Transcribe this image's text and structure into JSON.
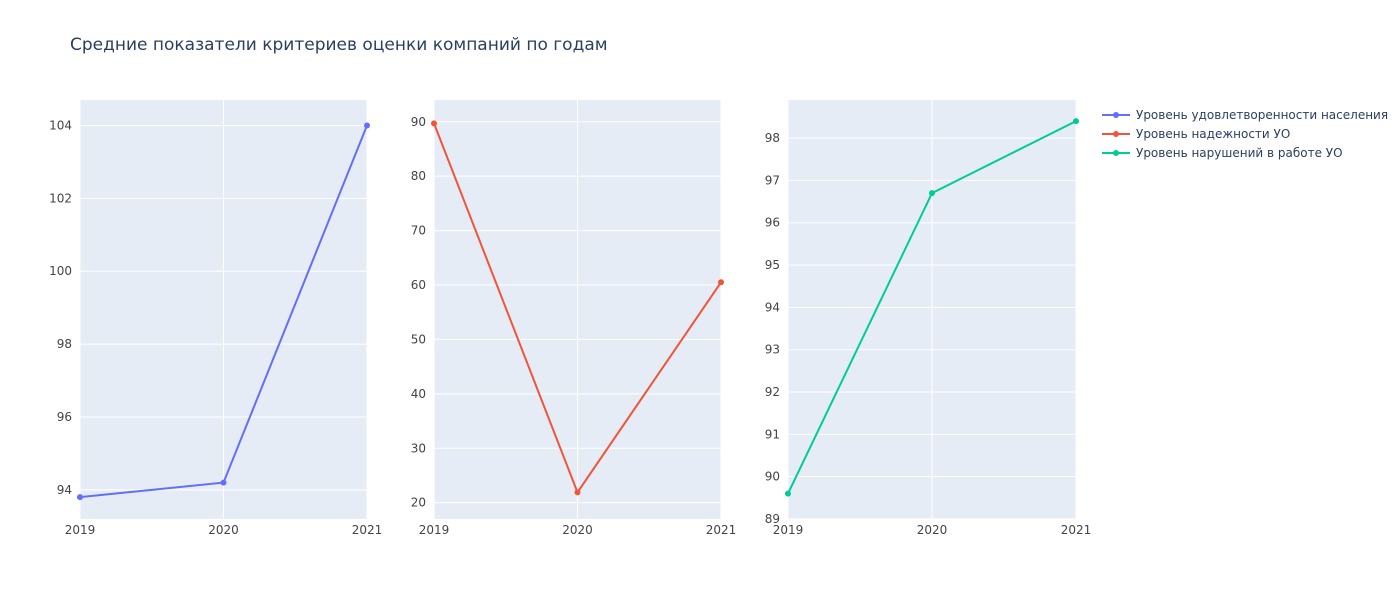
{
  "chart_data": {
    "title": "Средние показатели критериев оценки компаний по годам",
    "type": "line",
    "background": "#e5ecf6",
    "gridcolor": "#ffffff",
    "legend_position": "right",
    "subplots": [
      {
        "series_name": "Уровень удовлетворенности населения",
        "color": "#636efa",
        "x": [
          "2019",
          "2020",
          "2021"
        ],
        "y": [
          93.8,
          94.2,
          104.0
        ],
        "ylim": [
          93.2,
          104.7
        ],
        "yticks": [
          "94",
          "96",
          "98",
          "100",
          "102",
          "104"
        ],
        "xticks": [
          "2019",
          "2020",
          "2021"
        ]
      },
      {
        "series_name": "Уровень надежности УО",
        "color": "#ef553b",
        "x": [
          "2019",
          "2020",
          "2021"
        ],
        "y": [
          89.7,
          21.9,
          60.5
        ],
        "ylim": [
          17.0,
          94.0
        ],
        "yticks": [
          "20",
          "30",
          "40",
          "50",
          "60",
          "70",
          "80",
          "90"
        ],
        "xticks": [
          "2019",
          "2020",
          "2021"
        ]
      },
      {
        "series_name": "Уровень нарушений в работе УО",
        "color": "#00cc96",
        "x": [
          "2019",
          "2020",
          "2021"
        ],
        "y": [
          89.6,
          96.7,
          98.4
        ],
        "ylim": [
          89.0,
          98.9
        ],
        "yticks": [
          "89",
          "90",
          "91",
          "92",
          "93",
          "94",
          "95",
          "96",
          "97",
          "98"
        ],
        "xticks": [
          "2019",
          "2020",
          "2021"
        ]
      }
    ]
  }
}
